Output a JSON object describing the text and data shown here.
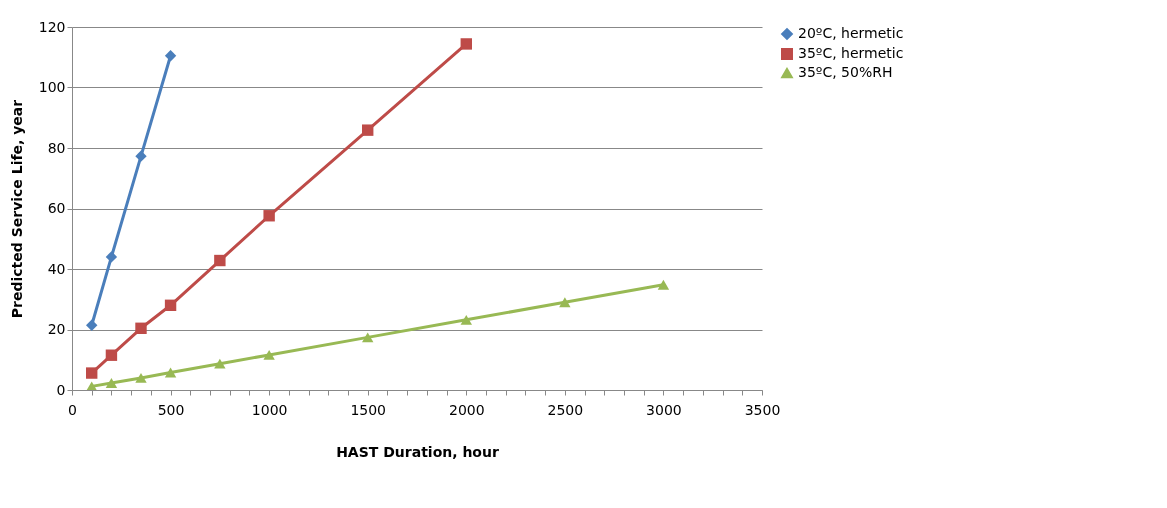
{
  "chart_data": {
    "type": "line",
    "xlabel": "HAST Duration, hour",
    "ylabel": "Predicted Service Life, year",
    "xlim": [
      0,
      3500
    ],
    "ylim": [
      0,
      120
    ],
    "xticks": [
      0,
      {
        "value": 100,
        "label": null
      },
      {
        "value": 200,
        "label": null
      },
      {
        "value": 300,
        "label": null
      },
      {
        "value": 400,
        "label": null
      },
      500,
      {
        "value": 600,
        "label": null
      },
      {
        "value": 700,
        "label": null
      },
      {
        "value": 800,
        "label": null
      },
      {
        "value": 900,
        "label": null
      },
      1000,
      {
        "value": 1100,
        "label": null
      },
      {
        "value": 1200,
        "label": null
      },
      {
        "value": 1300,
        "label": null
      },
      {
        "value": 1400,
        "label": null
      },
      1500,
      {
        "value": 1600,
        "label": null
      },
      {
        "value": 1700,
        "label": null
      },
      {
        "value": 1800,
        "label": null
      },
      {
        "value": 1900,
        "label": null
      },
      2000,
      {
        "value": 2100,
        "label": null
      },
      {
        "value": 2200,
        "label": null
      },
      {
        "value": 2300,
        "label": null
      },
      {
        "value": 2400,
        "label": null
      },
      2500,
      {
        "value": 2600,
        "label": null
      },
      {
        "value": 2700,
        "label": null
      },
      {
        "value": 2800,
        "label": null
      },
      {
        "value": 2900,
        "label": null
      },
      3000,
      {
        "value": 3100,
        "label": null
      },
      {
        "value": 3200,
        "label": null
      },
      {
        "value": 3300,
        "label": null
      },
      {
        "value": 3400,
        "label": null
      },
      3500
    ],
    "yticks": [
      0,
      20,
      40,
      60,
      80,
      100,
      120
    ],
    "grid": "y",
    "legend": "right",
    "line_style": "solid",
    "series": [
      {
        "name": "20ºC, hermetic",
        "color": "#4a7ebb",
        "marker": "diamond",
        "x": [
          100,
          200,
          350,
          500
        ],
        "values": [
          21.4,
          44,
          77.3,
          110.5
        ]
      },
      {
        "name": "35ºC, hermetic",
        "color": "#be4b48",
        "marker": "square",
        "x": [
          100,
          200,
          350,
          500,
          750,
          1000,
          1500,
          2000
        ],
        "values": [
          5.6,
          11.5,
          20.4,
          28,
          42.8,
          57.6,
          85.9,
          114.4
        ]
      },
      {
        "name": "35ºC, 50%RH",
        "color": "#98b954",
        "marker": "triangle",
        "x": [
          100,
          200,
          350,
          500,
          750,
          1000,
          1500,
          2000,
          2500,
          3000
        ],
        "values": [
          1.2,
          2.3,
          4,
          5.8,
          8.7,
          11.6,
          17.4,
          23.2,
          29,
          34.8
        ]
      }
    ]
  }
}
